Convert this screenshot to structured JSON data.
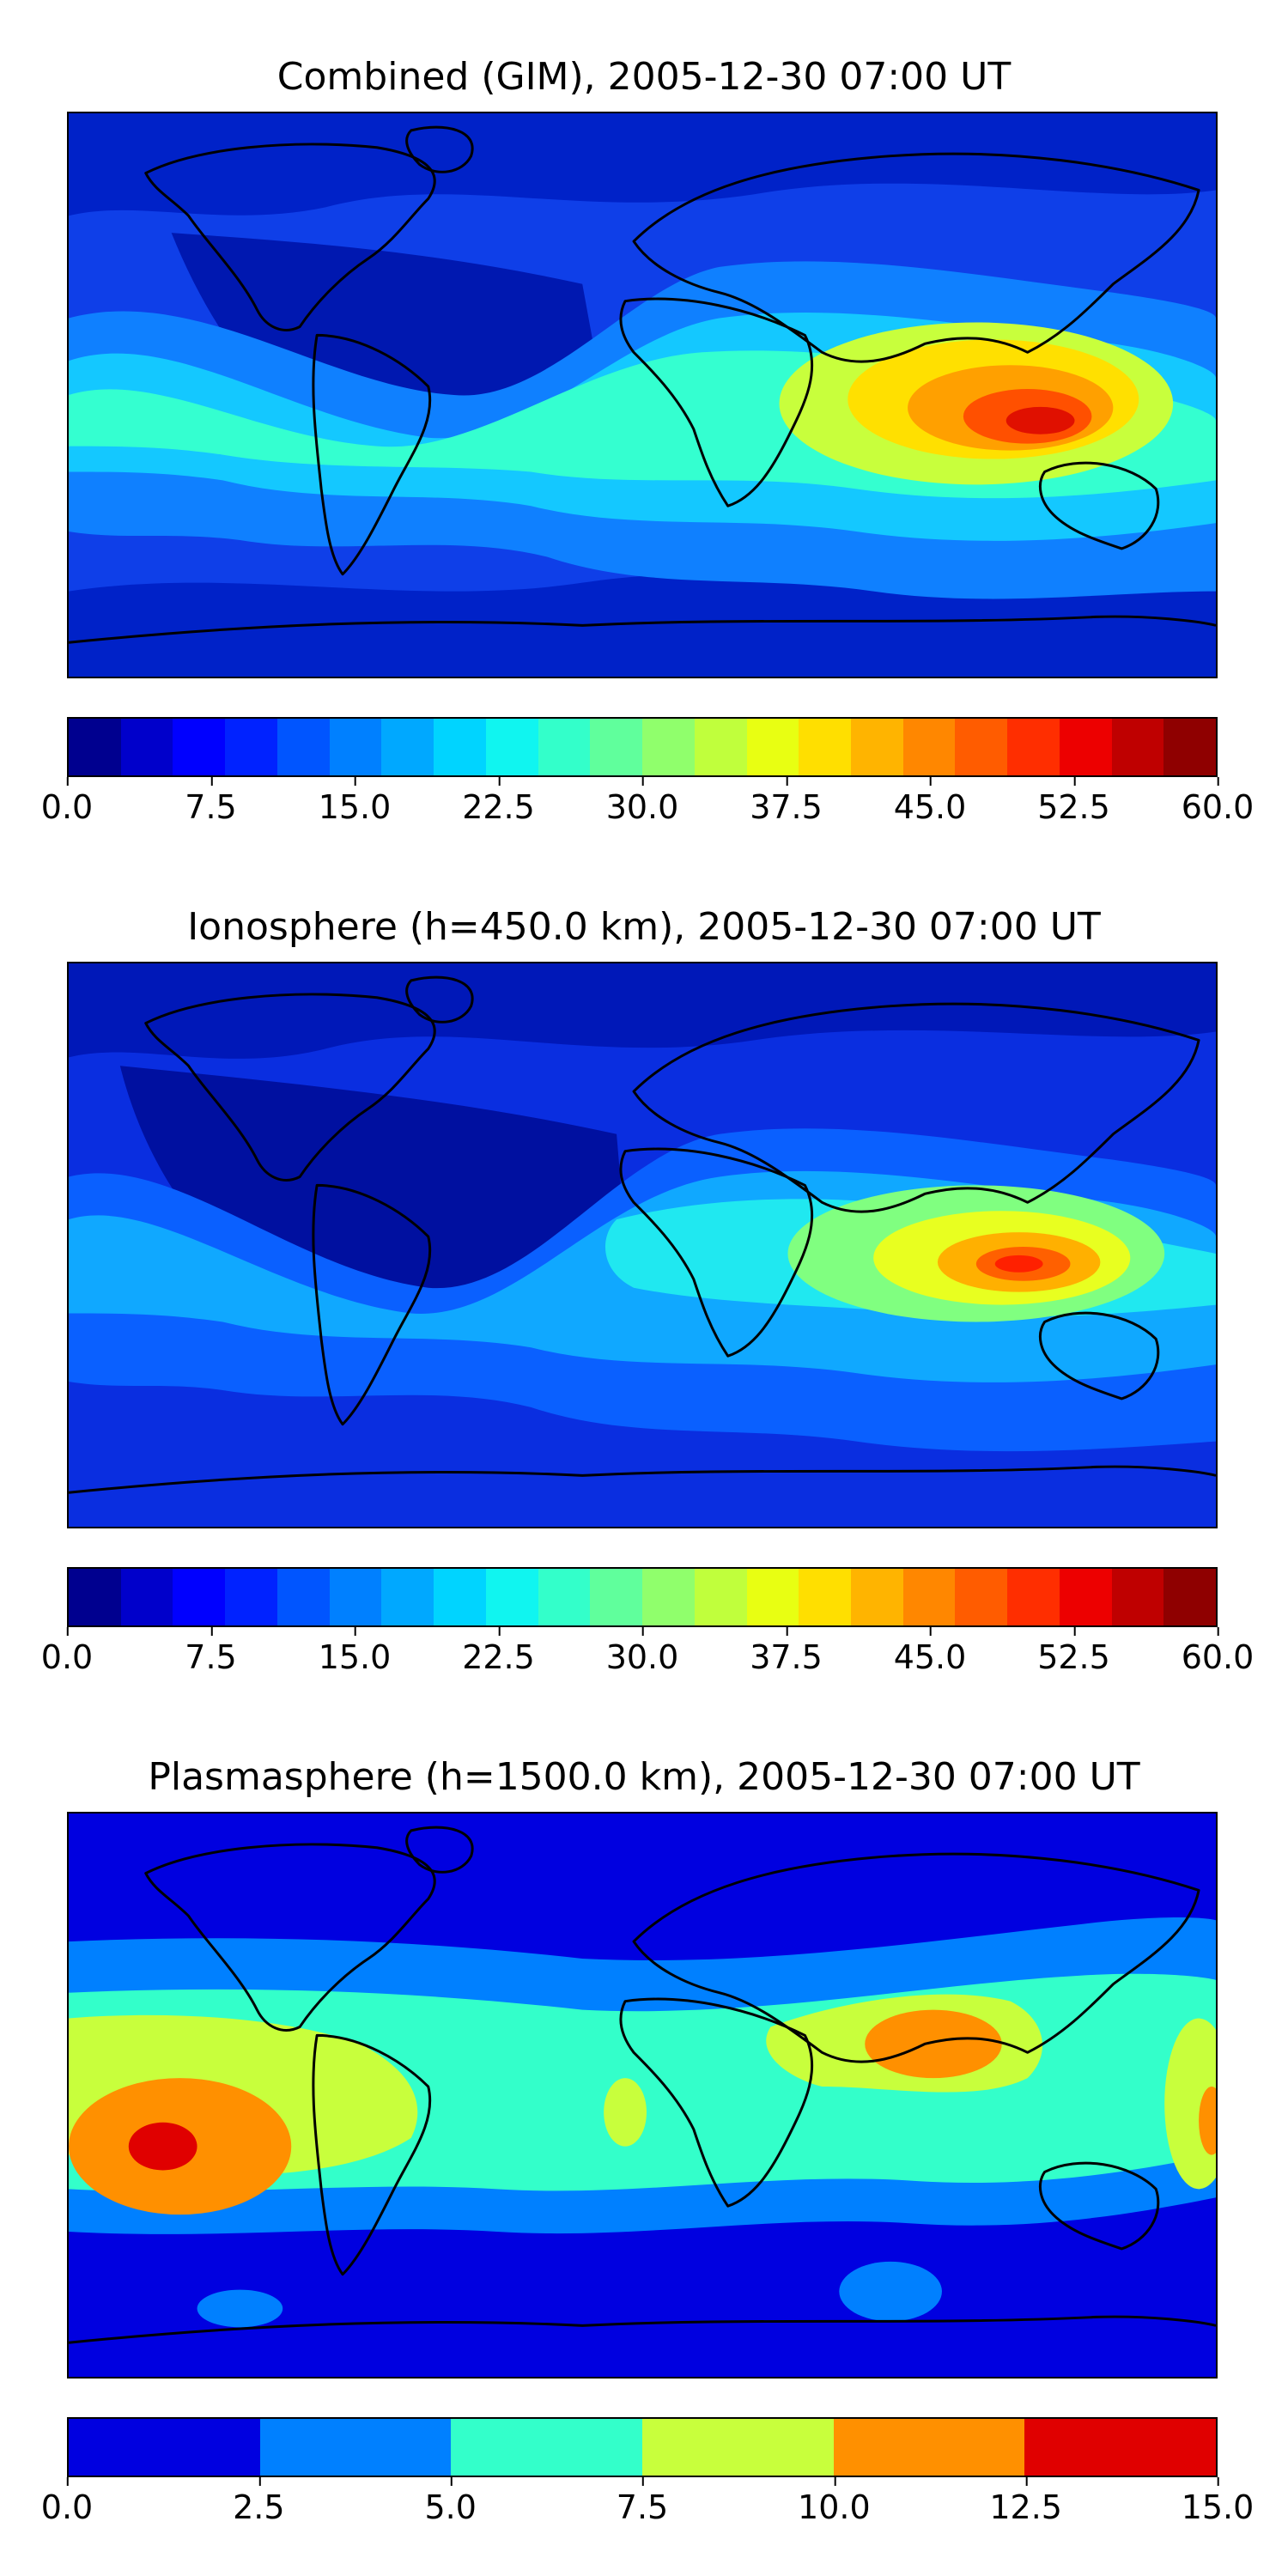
{
  "panels": [
    {
      "title": "Combined (GIM), 2005-12-30 07:00 UT",
      "colorbar": {
        "ticks": [
          "0.0",
          "7.5",
          "15.0",
          "22.5",
          "30.0",
          "37.5",
          "45.0",
          "52.5",
          "60.0"
        ],
        "colors": [
          "#00008f",
          "#0000cb",
          "#0000ff",
          "#0022ff",
          "#0055ff",
          "#0080ff",
          "#00a8ff",
          "#00d4ff",
          "#10f5f0",
          "#33ffca",
          "#60ff9c",
          "#90ff6c",
          "#c0ff3c",
          "#e8ff12",
          "#ffdf00",
          "#ffb400",
          "#ff8700",
          "#ff5c00",
          "#ff2e00",
          "#ed0000",
          "#bf0000",
          "#8f0000"
        ]
      },
      "map_colors": {
        "bg": "#0f3fe8",
        "polar": "#0022c8",
        "deep": "#0018b0",
        "band_outer": "#0f80ff",
        "band_mid": "#14c8ff",
        "band_inner": "#34ffd0",
        "hot1": "#c8ff3c",
        "hot2": "#ffe000",
        "hot3": "#ffa000",
        "hot4": "#ff5000",
        "hot5": "#e01000"
      }
    },
    {
      "title": "Ionosphere  (h=450.0 km), 2005-12-30 07:00 UT",
      "colorbar": {
        "ticks": [
          "0.0",
          "7.5",
          "15.0",
          "22.5",
          "30.0",
          "37.5",
          "45.0",
          "52.5",
          "60.0"
        ],
        "colors": [
          "#00008f",
          "#0000cb",
          "#0000ff",
          "#0022ff",
          "#0055ff",
          "#0080ff",
          "#00a8ff",
          "#00d4ff",
          "#10f5f0",
          "#33ffca",
          "#60ff9c",
          "#90ff6c",
          "#c0ff3c",
          "#e8ff12",
          "#ffdf00",
          "#ffb400",
          "#ff8700",
          "#ff5c00",
          "#ff2e00",
          "#ed0000",
          "#bf0000",
          "#8f0000"
        ]
      },
      "map_colors": {
        "bg": "#0a2ee0",
        "polar": "#0018b8",
        "deep": "#0010a0",
        "band_outer": "#0a60ff",
        "band_mid": "#10a8ff",
        "band_inner": "#20e8f0",
        "hot1": "#80ff80",
        "hot2": "#e8ff20",
        "hot3": "#ffb000",
        "hot4": "#ff6000",
        "hot5": "#ff2000"
      }
    },
    {
      "title": "Plasmasphere (h=1500.0 km), 2005-12-30 07:00 UT",
      "colorbar": {
        "ticks": [
          "0.0",
          "2.5",
          "5.0",
          "7.5",
          "10.0",
          "12.5",
          "15.0"
        ],
        "colors": [
          "#0000e0",
          "#0080ff",
          "#33ffca",
          "#c8ff3c",
          "#ff9000",
          "#e00000"
        ]
      },
      "map_colors": {
        "bg": "#0000e0",
        "band_outer": "#0080ff",
        "band_mid": "#33ffca",
        "band_inner": "#c8ff3c",
        "hot1": "#ff9000",
        "hot2": "#e00000"
      }
    }
  ]
}
